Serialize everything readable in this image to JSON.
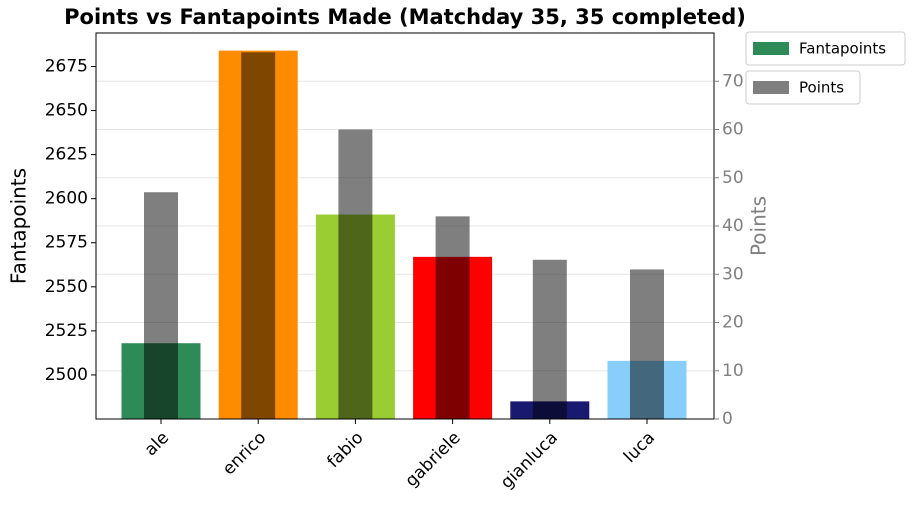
{
  "chart_data": {
    "type": "bar",
    "title": "Points vs Fantapoints Made (Matchday 35, 35 completed)",
    "ylabel": "Fantapoints",
    "y2label": "Points",
    "categories": [
      "ale",
      "enrico",
      "fabio",
      "gabriele",
      "gianluca",
      "luca"
    ],
    "series": [
      {
        "name": "Fantapoints",
        "colors": [
          "#2e8b57",
          "#ff8c00",
          "#9acd32",
          "#ff0000",
          "#191970",
          "#87cefa"
        ],
        "values": [
          2518,
          2684,
          2591,
          2567,
          2485,
          2508
        ]
      },
      {
        "name": "Points",
        "axis": "y2",
        "color": "#000000",
        "alpha": 0.5,
        "values": [
          47,
          76,
          60,
          42,
          33,
          31
        ]
      }
    ],
    "ylim": [
      2475,
      2694
    ],
    "yticks": [
      2500,
      2525,
      2550,
      2575,
      2600,
      2625,
      2650,
      2675
    ],
    "y2lim": [
      0,
      80
    ],
    "y2ticks": [
      0,
      10,
      20,
      30,
      40,
      50,
      60,
      70
    ],
    "grid": "y2",
    "legend": "outside-upper-right"
  }
}
